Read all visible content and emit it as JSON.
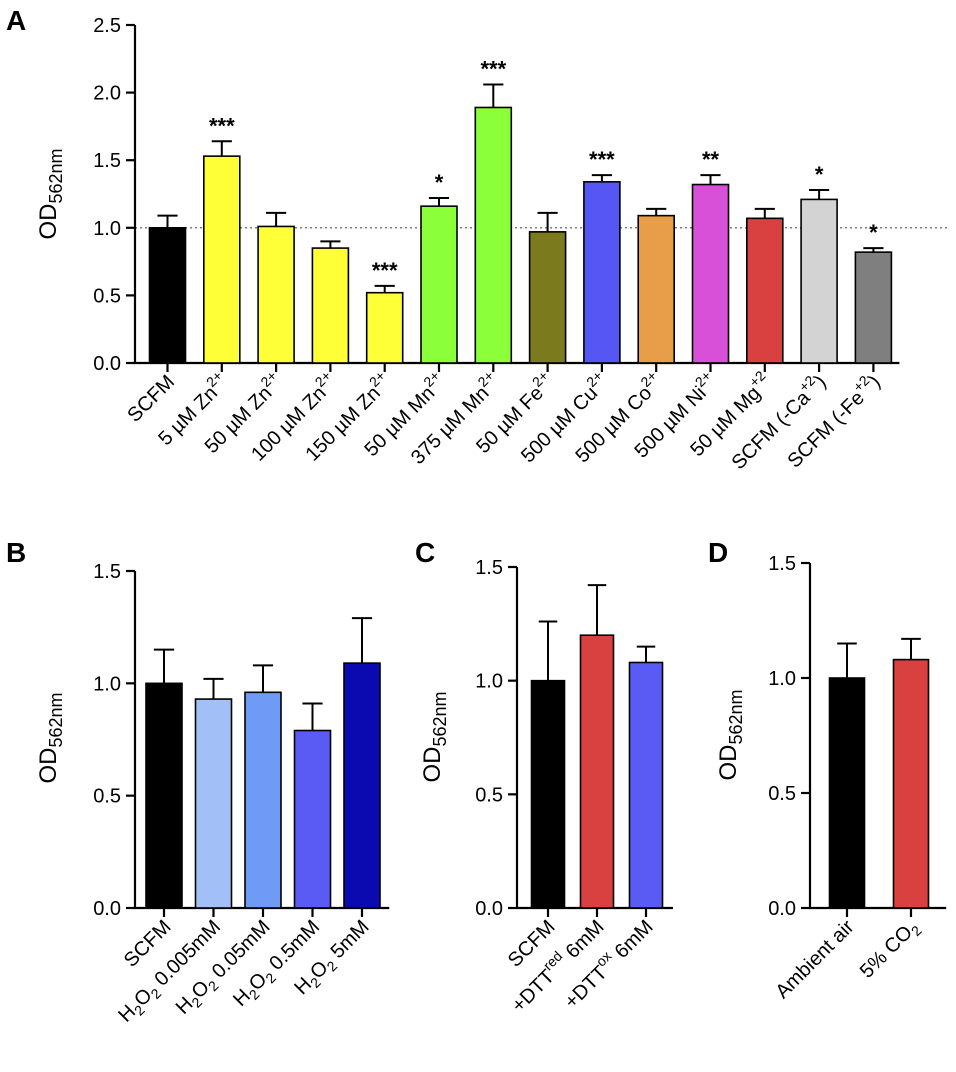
{
  "chart_data": [
    {
      "panel": "A",
      "type": "bar",
      "ylabel": "OD",
      "ylabel_sub": "562nm",
      "ylim": [
        0,
        2.5
      ],
      "yticks": [
        "0.0",
        "0.5",
        "1.0",
        "1.5",
        "2.0",
        "2.5"
      ],
      "reference_line": 1.0,
      "categories": [
        {
          "label": "SCFM"
        },
        {
          "label": "5 µM Zn",
          "sup": "2+"
        },
        {
          "label": "50 µM Zn",
          "sup": "2+"
        },
        {
          "label": "100 µM Zn",
          "sup": "2+"
        },
        {
          "label": "150 µM Zn",
          "sup": "2+"
        },
        {
          "label": "50 µM Mn",
          "sup": "2+"
        },
        {
          "label": "375 µM Mn",
          "sup": "2+"
        },
        {
          "label": "50 µM Fe",
          "sup": "2+"
        },
        {
          "label": "500 µM Cu",
          "sup": "2+"
        },
        {
          "label": "500 µM Co",
          "sup": "2+"
        },
        {
          "label": "500 µM Ni",
          "sup": "2+"
        },
        {
          "label": "50 µM Mg",
          "sup": "+2"
        },
        {
          "label": "SCFM (-Ca",
          "sup": "+2",
          "post": ")"
        },
        {
          "label": "SCFM (-Fe",
          "sup": "+2",
          "post": ")"
        }
      ],
      "values": [
        1.0,
        1.53,
        1.01,
        0.85,
        0.52,
        1.16,
        1.89,
        0.97,
        1.34,
        1.09,
        1.32,
        1.07,
        1.21,
        0.82
      ],
      "errors": [
        0.09,
        0.11,
        0.1,
        0.05,
        0.05,
        0.06,
        0.17,
        0.14,
        0.05,
        0.05,
        0.07,
        0.07,
        0.07,
        0.03
      ],
      "significance": [
        "",
        "***",
        "",
        "",
        "***",
        "*",
        "***",
        "",
        "***",
        "",
        "**",
        "",
        "*",
        "*"
      ],
      "colors": [
        "#000000",
        "#ffff38",
        "#ffff38",
        "#ffff38",
        "#ffff38",
        "#8aff3a",
        "#8aff3a",
        "#7b7a1d",
        "#5656f5",
        "#e89d48",
        "#d84fd8",
        "#d94040",
        "#d3d3d3",
        "#7f7f7f"
      ]
    },
    {
      "panel": "B",
      "type": "bar",
      "ylabel": "OD",
      "ylabel_sub": "562nm",
      "ylim": [
        0,
        1.5
      ],
      "yticks": [
        "0.0",
        "0.5",
        "1.0",
        "1.5"
      ],
      "categories": [
        {
          "label": "SCFM"
        },
        {
          "label": "H",
          "sub": "2",
          "label2": "O",
          "sub2": "2",
          "post": " 0.005mM"
        },
        {
          "label": "H",
          "sub": "2",
          "label2": "O",
          "sub2": "2",
          "post": " 0.05mM"
        },
        {
          "label": "H",
          "sub": "2",
          "label2": "O",
          "sub2": "2",
          "post": " 0.5mM"
        },
        {
          "label": "H",
          "sub": "2",
          "label2": "O",
          "sub2": "2",
          "post": " 5mM"
        }
      ],
      "values": [
        1.0,
        0.93,
        0.96,
        0.79,
        1.09
      ],
      "errors": [
        0.15,
        0.09,
        0.12,
        0.12,
        0.2
      ],
      "colors": [
        "#000000",
        "#a3bff7",
        "#6f9af5",
        "#5a5af5",
        "#0a0ab0"
      ]
    },
    {
      "panel": "C",
      "type": "bar",
      "ylabel": "OD",
      "ylabel_sub": "562nm",
      "ylim": [
        0,
        1.5
      ],
      "yticks": [
        "0.0",
        "0.5",
        "1.0",
        "1.5"
      ],
      "categories": [
        {
          "label": "SCFM"
        },
        {
          "label": "+DTT",
          "sup": "red",
          "post": " 6mM"
        },
        {
          "label": "+DTT",
          "sup": "ox",
          "post": " 6mM"
        }
      ],
      "values": [
        1.0,
        1.2,
        1.08
      ],
      "errors": [
        0.26,
        0.22,
        0.07
      ],
      "colors": [
        "#000000",
        "#d94040",
        "#5a5af5"
      ]
    },
    {
      "panel": "D",
      "type": "bar",
      "ylabel": "OD",
      "ylabel_sub": "562nm",
      "ylim": [
        0,
        1.5
      ],
      "yticks": [
        "0.0",
        "0.5",
        "1.0",
        "1.5"
      ],
      "categories": [
        {
          "label": "Ambient air"
        },
        {
          "label": "5% CO",
          "sub": "2"
        }
      ],
      "values": [
        1.0,
        1.08
      ],
      "errors": [
        0.15,
        0.09
      ],
      "colors": [
        "#000000",
        "#d94040"
      ]
    }
  ]
}
